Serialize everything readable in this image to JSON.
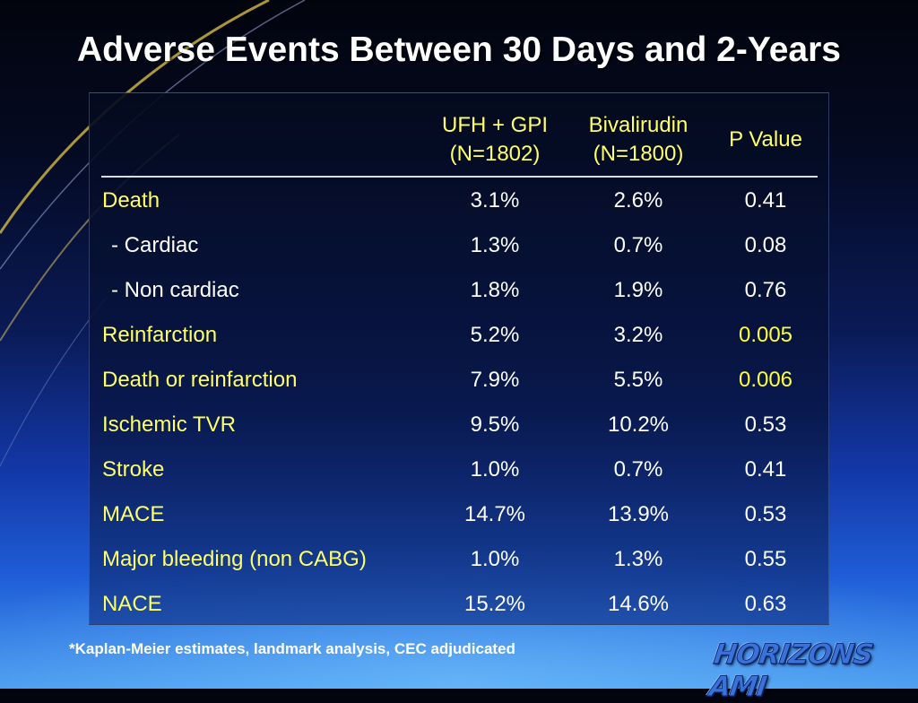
{
  "slide": {
    "title": "Adverse Events Between 30 Days and 2-Years",
    "footnote": "*Kaplan-Meier estimates, landmark analysis, CEC adjudicated",
    "logo_text": "HORIZONS AMI"
  },
  "table": {
    "headers": {
      "col1_line1": "UFH + GPI",
      "col1_line2": "(N=1802)",
      "col2_line1": "Bivalirudin",
      "col2_line2": "(N=1800)",
      "col3": "P Value"
    },
    "rows": [
      {
        "label": "Death",
        "ufh": "3.1%",
        "biv": "2.6%",
        "p": "0.41"
      },
      {
        "label": "- Cardiac",
        "ufh": "1.3%",
        "biv": "0.7%",
        "p": "0.08"
      },
      {
        "label": "- Non cardiac",
        "ufh": "1.8%",
        "biv": "1.9%",
        "p": "0.76"
      },
      {
        "label": "Reinfarction",
        "ufh": "5.2%",
        "biv": "3.2%",
        "p": "0.005"
      },
      {
        "label": "Death or reinfarction",
        "ufh": "7.9%",
        "biv": "5.5%",
        "p": "0.006"
      },
      {
        "label": "Ischemic TVR",
        "ufh": "9.5%",
        "biv": "10.2%",
        "p": "0.53"
      },
      {
        "label": "Stroke",
        "ufh": "1.0%",
        "biv": "0.7%",
        "p": "0.41"
      },
      {
        "label": "MACE",
        "ufh": "14.7%",
        "biv": "13.9%",
        "p": "0.53"
      },
      {
        "label": "Major bleeding (non CABG)",
        "ufh": "1.0%",
        "biv": "1.3%",
        "p": "0.55"
      },
      {
        "label": "NACE",
        "ufh": "15.2%",
        "biv": "14.6%",
        "p": "0.63"
      }
    ]
  },
  "colors": {
    "label_yellow": "#ffff66",
    "significant_p": "#ffff33",
    "value_white": "#ffffff"
  }
}
